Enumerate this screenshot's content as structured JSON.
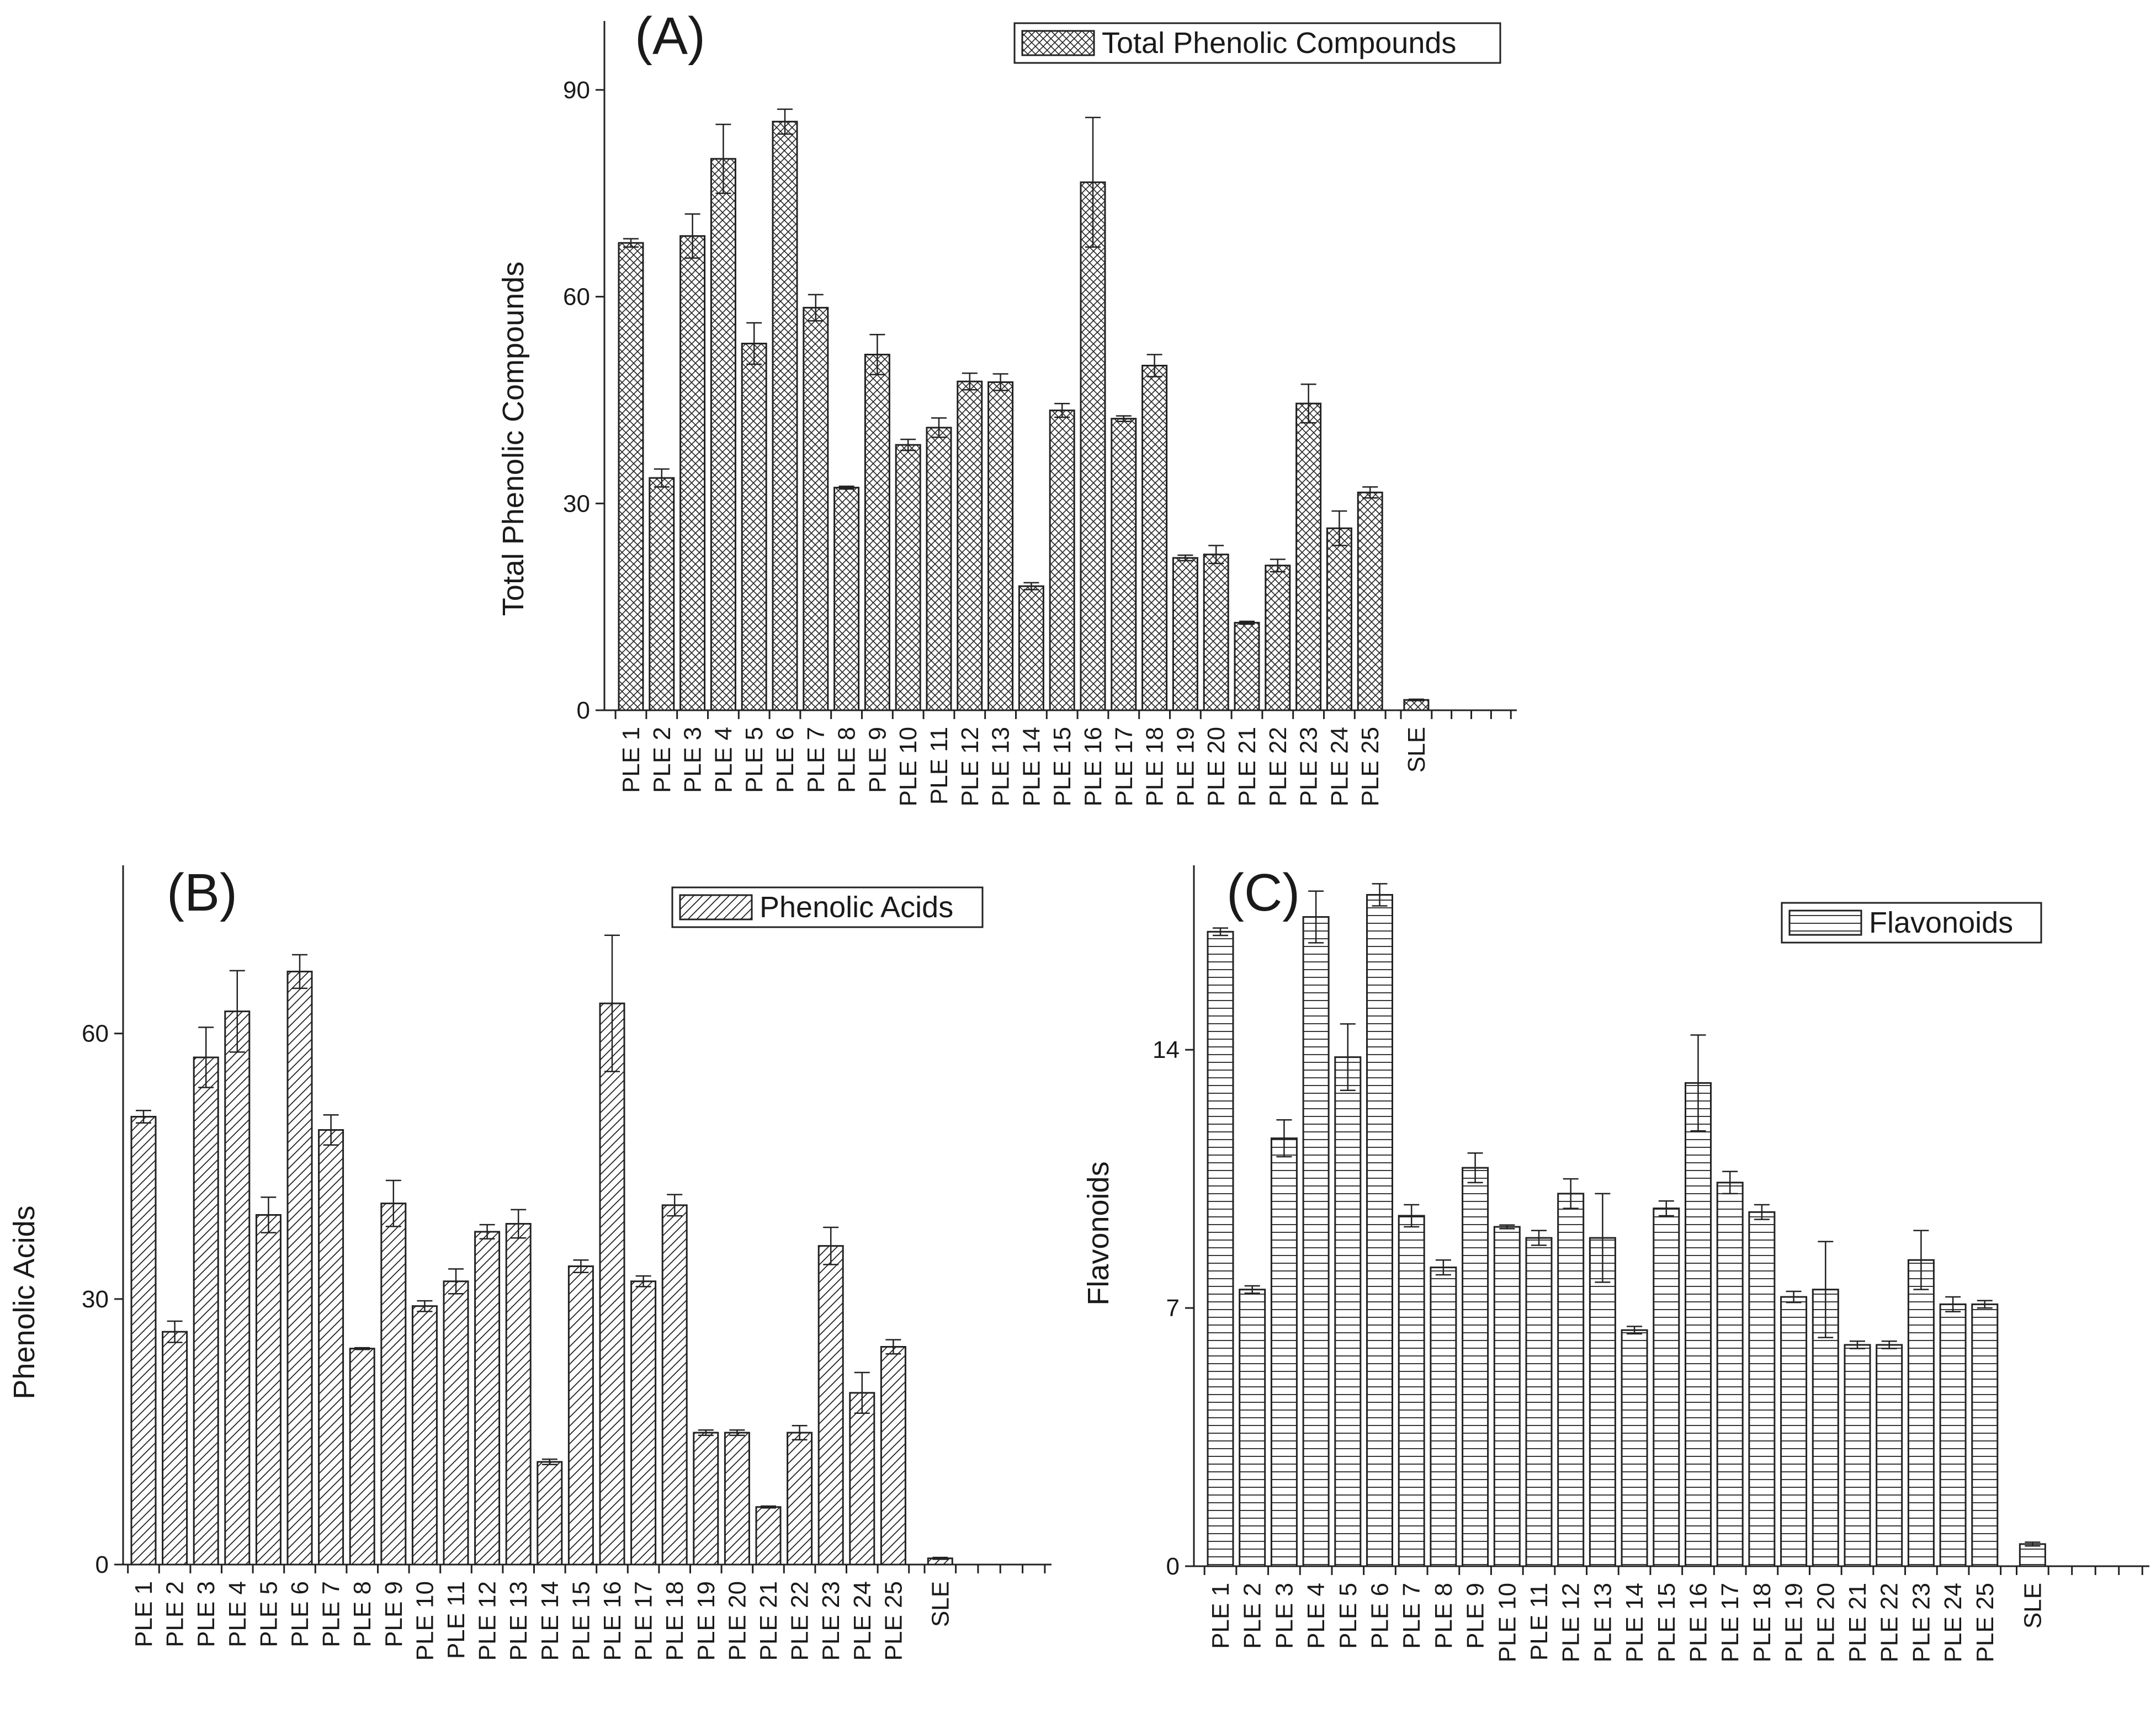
{
  "figure_title": "",
  "chart_data": [
    {
      "type": "bar",
      "panel": "(A)",
      "title": "",
      "legend": "Total Phenolic Compounds",
      "xlabel": "",
      "ylabel": "Total Phenolic Compounds",
      "categories": [
        "PLE 1",
        "PLE 2",
        "PLE 3",
        "PLE 4",
        "PLE 5",
        "PLE 6",
        "PLE 7",
        "PLE 8",
        "PLE 9",
        "PLE 10",
        "PLE 11",
        "PLE 12",
        "PLE 13",
        "PLE 14",
        "PLE 15",
        "PLE 16",
        "PLE 17",
        "PLE 18",
        "PLE 19",
        "PLE 20",
        "PLE 21",
        "PLE 22",
        "PLE 23",
        "PLE 24",
        "PLE 25",
        "SLE"
      ],
      "values": [
        67.8,
        33.7,
        68.8,
        80.0,
        53.2,
        85.4,
        58.4,
        32.3,
        51.6,
        38.5,
        41.0,
        47.7,
        47.6,
        18.0,
        43.5,
        76.6,
        42.3,
        50.0,
        22.1,
        22.6,
        12.7,
        21.0,
        44.5,
        26.4,
        31.6,
        1.5
      ],
      "errors": [
        0.6,
        1.3,
        3.2,
        5.0,
        3.0,
        1.8,
        1.9,
        0.2,
        2.9,
        0.8,
        1.4,
        1.2,
        1.2,
        0.5,
        1.0,
        9.4,
        0.4,
        1.6,
        0.4,
        1.3,
        0.2,
        0.9,
        2.8,
        2.5,
        0.8,
        0.1
      ],
      "yticks": [
        0,
        30,
        60,
        90
      ],
      "ylim": [
        0,
        100
      ],
      "grid": false,
      "pattern": "crosshatch",
      "legend_position": "top-right"
    },
    {
      "type": "bar",
      "panel": "(B)",
      "title": "",
      "legend": "Phenolic Acids",
      "xlabel": "",
      "ylabel": "Phenolic Acids",
      "categories": [
        "PLE 1",
        "PLE 2",
        "PLE 3",
        "PLE 4",
        "PLE 5",
        "PLE 6",
        "PLE 7",
        "PLE 8",
        "PLE 9",
        "PLE 10",
        "PLE 11",
        "PLE 12",
        "PLE 13",
        "PLE 14",
        "PLE 15",
        "PLE 16",
        "PLE 17",
        "PLE 18",
        "PLE 19",
        "PLE 20",
        "PLE 21",
        "PLE 22",
        "PLE 23",
        "PLE 24",
        "PLE 25",
        "SLE"
      ],
      "values": [
        50.6,
        26.3,
        57.3,
        62.5,
        39.5,
        67.0,
        49.1,
        24.4,
        40.8,
        29.2,
        32.0,
        37.6,
        38.5,
        11.6,
        33.7,
        63.4,
        32.0,
        40.6,
        14.9,
        14.9,
        6.5,
        14.9,
        36.0,
        19.4,
        24.6,
        0.7
      ],
      "errors": [
        0.7,
        1.2,
        3.4,
        4.6,
        2.0,
        1.9,
        1.7,
        0.1,
        2.6,
        0.6,
        1.4,
        0.8,
        1.6,
        0.3,
        0.7,
        7.7,
        0.6,
        1.2,
        0.3,
        0.3,
        0.1,
        0.8,
        2.1,
        2.3,
        0.8,
        0.1
      ],
      "yticks": [
        0,
        30,
        60
      ],
      "ylim": [
        0,
        79
      ],
      "grid": false,
      "pattern": "diagonal",
      "legend_position": "top-right"
    },
    {
      "type": "bar",
      "panel": "(C)",
      "title": "",
      "legend": "Flavonoids",
      "xlabel": "",
      "ylabel": "Flavonoids",
      "categories": [
        "PLE 1",
        "PLE 2",
        "PLE 3",
        "PLE 4",
        "PLE 5",
        "PLE 6",
        "PLE 7",
        "PLE 8",
        "PLE 9",
        "PLE 10",
        "PLE 11",
        "PLE 12",
        "PLE 13",
        "PLE 14",
        "PLE 15",
        "PLE 16",
        "PLE 17",
        "PLE 18",
        "PLE 19",
        "PLE 20",
        "PLE 21",
        "PLE 22",
        "PLE 23",
        "PLE 24",
        "PLE 25",
        "SLE"
      ],
      "values": [
        17.2,
        7.5,
        11.6,
        17.6,
        13.8,
        18.2,
        9.5,
        8.1,
        10.8,
        9.2,
        8.9,
        10.1,
        8.9,
        6.4,
        9.7,
        13.1,
        10.4,
        9.6,
        7.3,
        7.5,
        6.0,
        6.0,
        8.3,
        7.1,
        7.1,
        0.6
      ],
      "errors": [
        0.1,
        0.1,
        0.5,
        0.7,
        0.9,
        0.3,
        0.3,
        0.2,
        0.4,
        0.05,
        0.2,
        0.4,
        1.2,
        0.1,
        0.2,
        1.3,
        0.3,
        0.2,
        0.15,
        1.3,
        0.1,
        0.1,
        0.8,
        0.2,
        0.1,
        0.05
      ],
      "yticks": [
        0,
        7,
        14
      ],
      "ylim": [
        0,
        19
      ],
      "grid": false,
      "pattern": "horizontal",
      "legend_position": "top-right"
    }
  ]
}
